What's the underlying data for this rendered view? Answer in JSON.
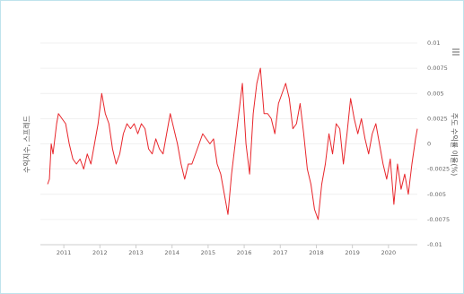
{
  "chart_data": {
    "type": "line",
    "y_axis_label": "수익지수, 스프레드",
    "y2_axis_label": "주도 수익률 이율(%)",
    "xlim": [
      2010.35,
      2020.8
    ],
    "xticks": [
      2011,
      2012,
      2013,
      2014,
      2015,
      2016,
      2017,
      2018,
      2019,
      2020
    ],
    "ylim": [
      -0.01,
      0.01
    ],
    "yticks": [
      0.01,
      0.0075,
      0.005,
      0.0025,
      0,
      -0.0025,
      -0.005,
      -0.0075,
      -0.01
    ],
    "grid": true,
    "series": [
      {
        "name": "",
        "color": "#e8262b",
        "x": [
          2010.55,
          2010.6,
          2010.65,
          2010.7,
          2010.8,
          2010.85,
          2010.95,
          2011.05,
          2011.15,
          2011.25,
          2011.35,
          2011.45,
          2011.55,
          2011.65,
          2011.75,
          2011.85,
          2011.95,
          2012.05,
          2012.15,
          2012.25,
          2012.35,
          2012.45,
          2012.55,
          2012.65,
          2012.75,
          2012.85,
          2012.95,
          2013.05,
          2013.15,
          2013.25,
          2013.35,
          2013.45,
          2013.55,
          2013.65,
          2013.75,
          2013.85,
          2013.95,
          2014.05,
          2014.15,
          2014.25,
          2014.35,
          2014.45,
          2014.55,
          2014.65,
          2014.75,
          2014.85,
          2014.95,
          2015.05,
          2015.15,
          2015.25,
          2015.35,
          2015.45,
          2015.55,
          2015.65,
          2015.75,
          2015.85,
          2015.95,
          2016.05,
          2016.15,
          2016.25,
          2016.35,
          2016.45,
          2016.55,
          2016.65,
          2016.75,
          2016.85,
          2016.95,
          2017.05,
          2017.15,
          2017.25,
          2017.35,
          2017.45,
          2017.55,
          2017.65,
          2017.75,
          2017.85,
          2017.95,
          2018.05,
          2018.15,
          2018.25,
          2018.35,
          2018.45,
          2018.55,
          2018.65,
          2018.75,
          2018.85,
          2018.95,
          2019.05,
          2019.15,
          2019.25,
          2019.35,
          2019.45,
          2019.55,
          2019.65,
          2019.75,
          2019.85,
          2019.95,
          2020.05,
          2020.15,
          2020.25,
          2020.35,
          2020.45,
          2020.55,
          2020.65,
          2020.75,
          2020.8
        ],
        "values": [
          -0.004,
          -0.0035,
          0.0,
          -0.001,
          0.002,
          0.003,
          0.0025,
          0.002,
          0.0,
          -0.0015,
          -0.002,
          -0.0015,
          -0.0025,
          -0.001,
          -0.002,
          0.0,
          0.002,
          0.005,
          0.003,
          0.002,
          -0.0005,
          -0.002,
          -0.001,
          0.001,
          0.002,
          0.0015,
          0.002,
          0.001,
          0.002,
          0.0015,
          -0.0005,
          -0.001,
          0.0005,
          -0.0005,
          -0.001,
          0.001,
          0.003,
          0.0015,
          0.0,
          -0.002,
          -0.0035,
          -0.002,
          -0.002,
          -0.001,
          0.0,
          0.001,
          0.0005,
          0.0,
          0.0005,
          -0.002,
          -0.003,
          -0.005,
          -0.007,
          -0.003,
          0.0,
          0.003,
          0.006,
          0.0,
          -0.003,
          0.003,
          0.006,
          0.0075,
          0.003,
          0.003,
          0.0025,
          0.001,
          0.004,
          0.005,
          0.006,
          0.0045,
          0.0015,
          0.002,
          0.004,
          0.001,
          -0.0025,
          -0.004,
          -0.0065,
          -0.0075,
          -0.004,
          -0.002,
          0.001,
          -0.001,
          0.002,
          0.0015,
          -0.002,
          0.001,
          0.0045,
          0.0025,
          0.001,
          0.0025,
          0.0005,
          -0.001,
          0.001,
          0.002,
          0.0,
          -0.002,
          -0.0035,
          -0.0015,
          -0.006,
          -0.002,
          -0.0045,
          -0.003,
          -0.005,
          -0.002,
          0.0005,
          0.0015
        ]
      }
    ]
  }
}
